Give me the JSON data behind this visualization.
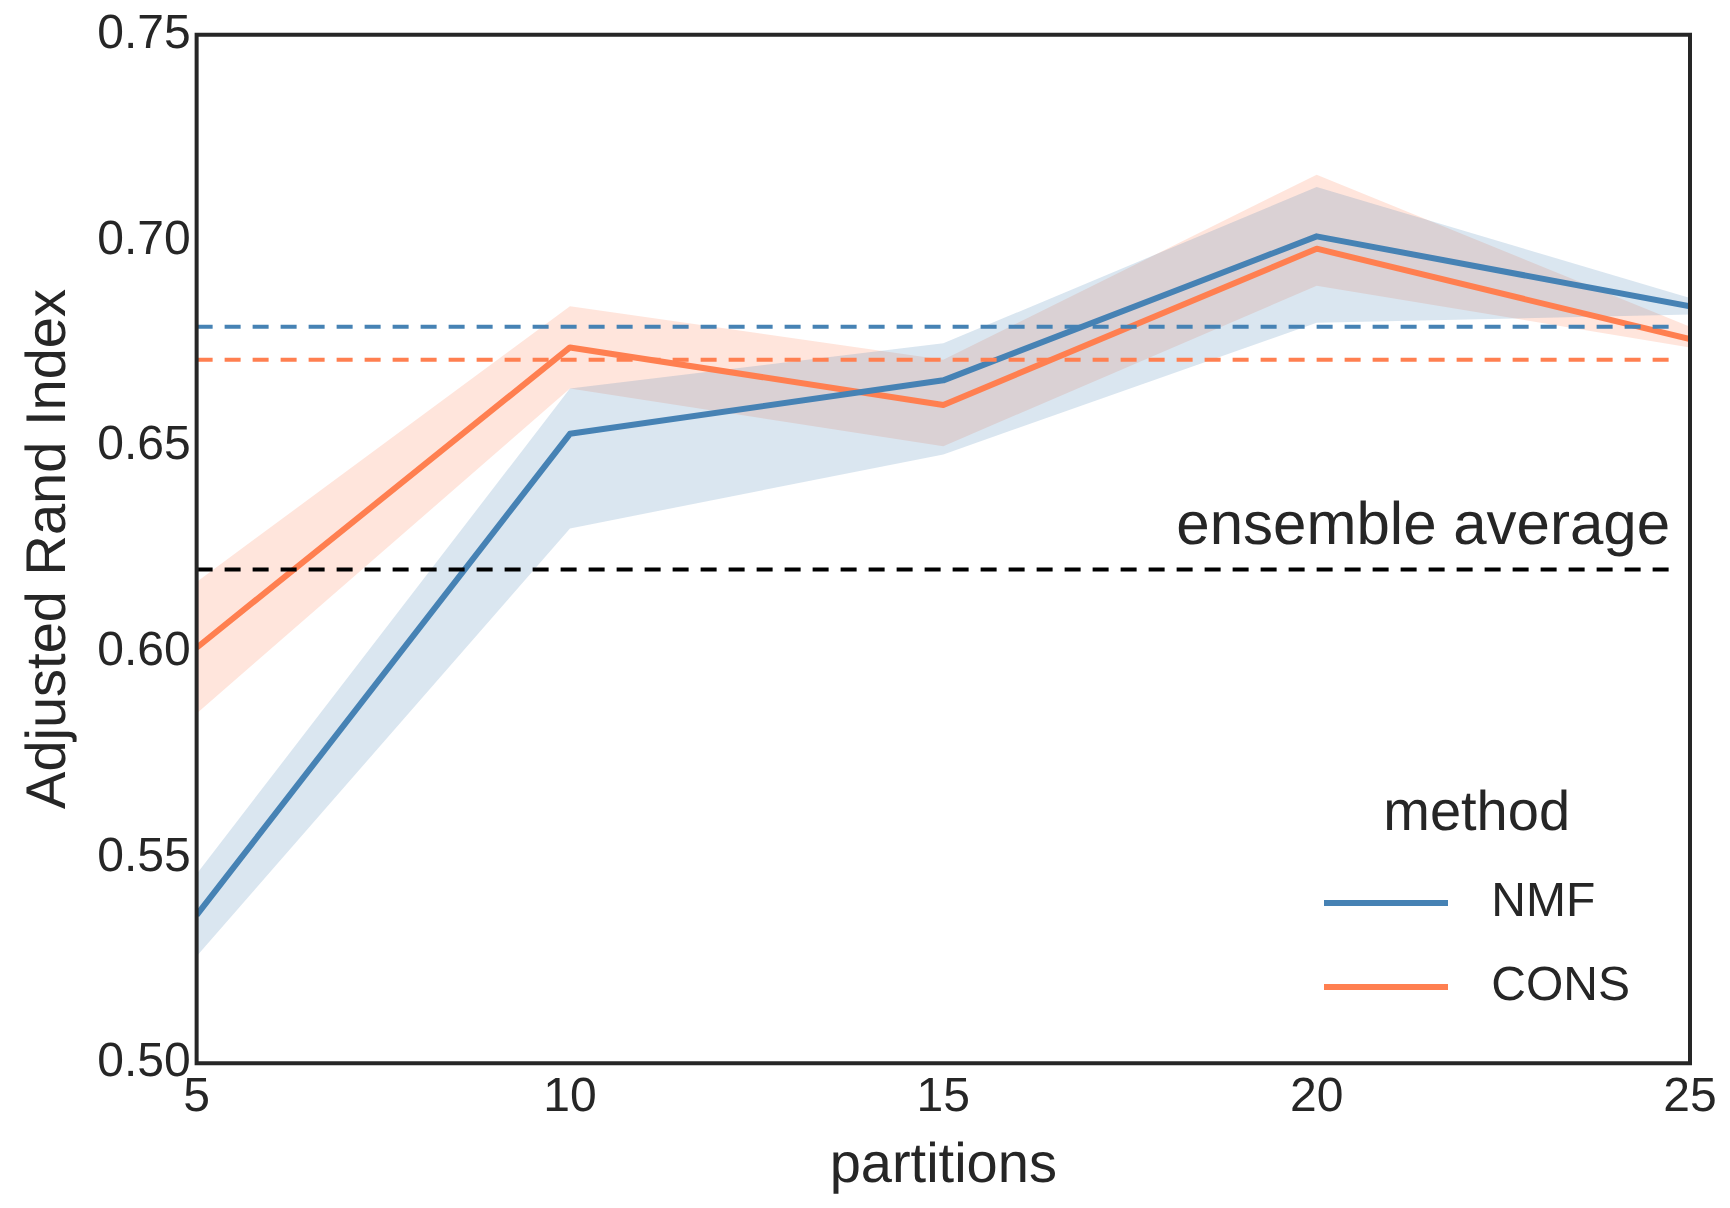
{
  "chart_data": {
    "type": "line",
    "xlabel": "partitions",
    "ylabel": "Adjusted Rand Index",
    "legend_title": "method",
    "x": [
      5,
      10,
      15,
      20,
      25
    ],
    "series": [
      {
        "name": "NMF",
        "color": "#4682b4",
        "values": [
          0.536,
          0.653,
          0.666,
          0.701,
          0.684
        ],
        "lower": [
          0.526,
          0.63,
          0.648,
          0.68,
          0.682
        ],
        "upper": [
          0.546,
          0.664,
          0.675,
          0.713,
          0.686
        ]
      },
      {
        "name": "CONS",
        "color": "#ff7f50",
        "values": [
          0.601,
          0.674,
          0.66,
          0.698,
          0.676
        ],
        "lower": [
          0.585,
          0.664,
          0.65,
          0.689,
          0.674
        ],
        "upper": [
          0.617,
          0.684,
          0.671,
          0.716,
          0.679
        ]
      }
    ],
    "ref_lines": [
      {
        "axis": "y",
        "value": 0.679,
        "label": null,
        "color": "#4682b4",
        "line_style": "dashed"
      },
      {
        "axis": "y",
        "value": 0.671,
        "label": null,
        "color": "#ff7f50",
        "line_style": "dashed"
      },
      {
        "axis": "y",
        "value": 0.62,
        "label": "ensemble average",
        "color": "#000000",
        "line_style": "dashed"
      }
    ],
    "xlim": [
      5,
      25
    ],
    "xticks": [
      5,
      10,
      15,
      20,
      25
    ],
    "ylim": [
      0.5,
      0.75
    ],
    "yticks": [
      {
        "value": 0.5,
        "label": "0.50"
      },
      {
        "value": 0.55,
        "label": "0.55"
      },
      {
        "value": 0.6,
        "label": "0.60"
      },
      {
        "value": 0.65,
        "label": "0.65"
      },
      {
        "value": 0.7,
        "label": "0.70"
      },
      {
        "value": 0.75,
        "label": "0.75"
      }
    ],
    "grid": false,
    "legend": "bottom right",
    "marker": "none",
    "line_style": "solid"
  }
}
